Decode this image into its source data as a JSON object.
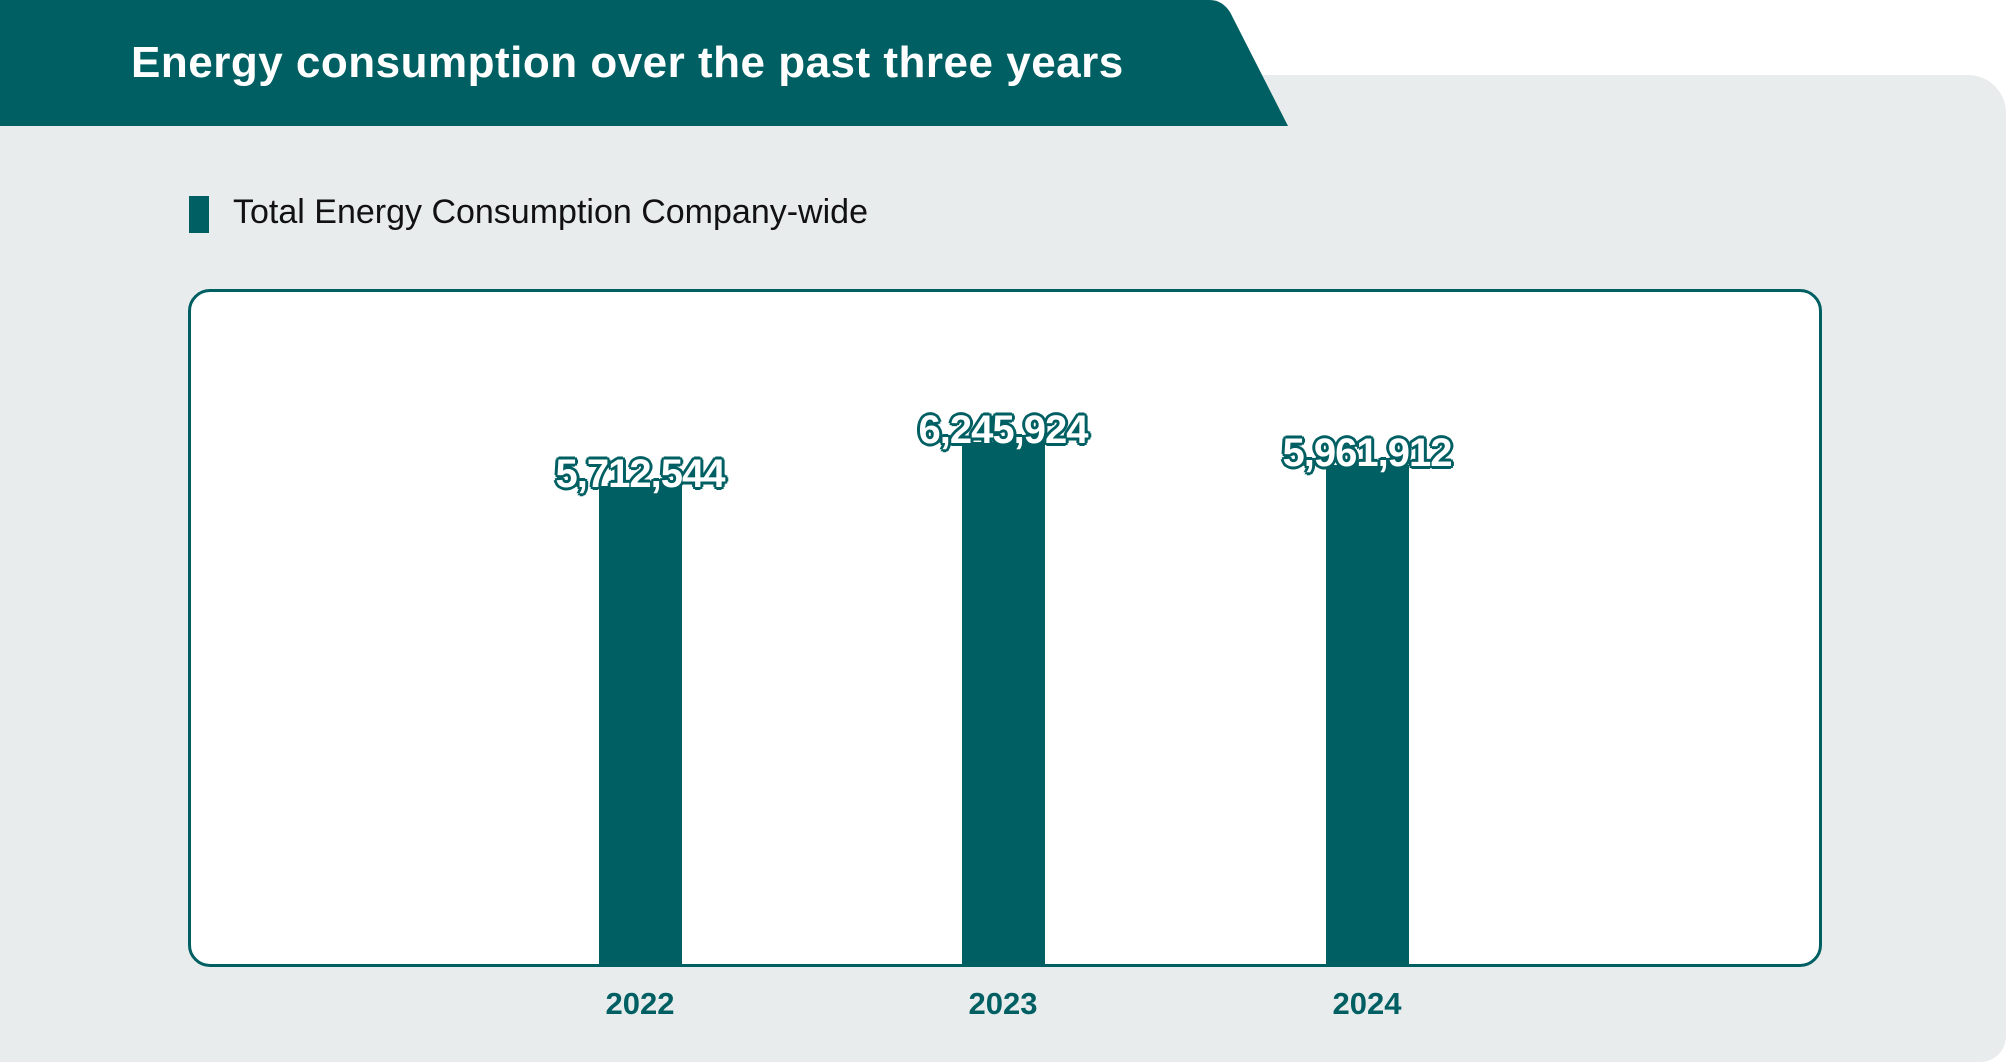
{
  "header": {
    "title": "Energy consumption over the past three years"
  },
  "colors": {
    "accent": "#005f62",
    "panel": "#e8ecec"
  },
  "chart_data": {
    "type": "bar",
    "title": "Total Energy Consumption Company-wide",
    "legend": [
      "Total Energy Consumption Company-wide"
    ],
    "legend_position": "top-left",
    "categories": [
      "2022",
      "2023",
      "2024"
    ],
    "values": [
      5712544,
      6245924,
      5961912
    ],
    "value_labels": [
      "5,712,544",
      "6,245,924",
      "5,961,912"
    ],
    "xlabel": "",
    "ylabel": "",
    "ylim": [
      0,
      6600000
    ],
    "grid": false
  }
}
